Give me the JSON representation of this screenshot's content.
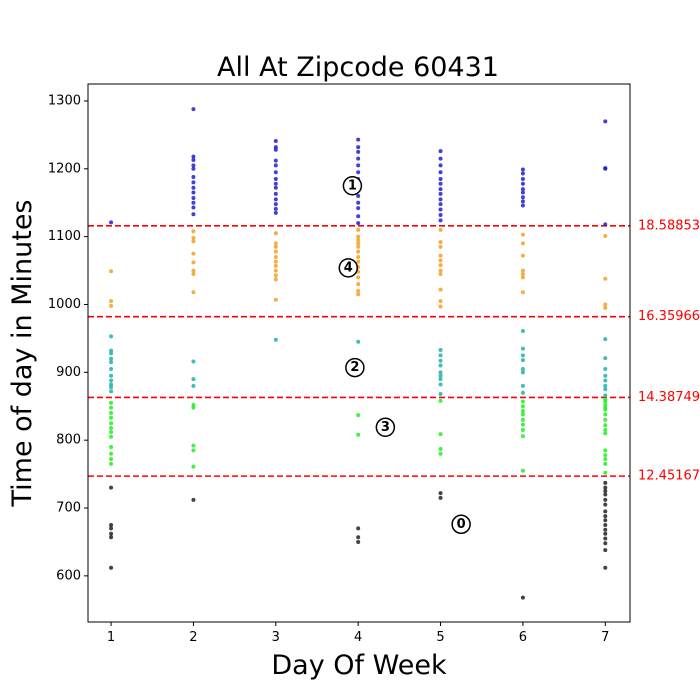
{
  "chart_data": {
    "type": "scatter",
    "title": "All At Zipcode 60431",
    "xlabel": "Day Of Week",
    "ylabel": "Time of day in Minutes",
    "xlim": [
      0.72,
      7.3
    ],
    "ylim": [
      532,
      1325
    ],
    "xticks": [
      1,
      2,
      3,
      4,
      5,
      6,
      7
    ],
    "yticks": [
      600,
      700,
      800,
      900,
      1000,
      1100,
      1200,
      1300
    ],
    "grid": false,
    "thresholds": [
      {
        "value": 1116,
        "label": "18.58853"
      },
      {
        "value": 982,
        "label": "16.35966"
      },
      {
        "value": 863,
        "label": "14.38749"
      },
      {
        "value": 747,
        "label": "12.45167"
      }
    ],
    "threshold_color": "#ff0000",
    "clusters": [
      {
        "label": "0",
        "x": 5.25,
        "y": 676,
        "color": "#222222"
      },
      {
        "label": "1",
        "x": 3.93,
        "y": 1175,
        "color": "#2020cc"
      },
      {
        "label": "2",
        "x": 3.96,
        "y": 907,
        "color": "#20b2aa"
      },
      {
        "label": "3",
        "x": 4.33,
        "y": 819,
        "color": "#22ee22"
      },
      {
        "label": "4",
        "x": 3.88,
        "y": 1054,
        "color": "#f5a020"
      }
    ],
    "series": [
      {
        "cluster": "0",
        "points": [
          [
            1,
            730
          ],
          [
            1,
            675
          ],
          [
            1,
            670
          ],
          [
            1,
            662
          ],
          [
            1,
            657
          ],
          [
            1,
            612
          ],
          [
            2,
            712
          ],
          [
            4,
            670
          ],
          [
            4,
            657
          ],
          [
            4,
            650
          ],
          [
            5,
            722
          ],
          [
            5,
            715
          ],
          [
            6,
            568
          ],
          [
            7,
            737
          ],
          [
            7,
            730
          ],
          [
            7,
            725
          ],
          [
            7,
            720
          ],
          [
            7,
            712
          ],
          [
            7,
            705
          ],
          [
            7,
            695
          ],
          [
            7,
            688
          ],
          [
            7,
            682
          ],
          [
            7,
            675
          ],
          [
            7,
            668
          ],
          [
            7,
            662
          ],
          [
            7,
            655
          ],
          [
            7,
            648
          ],
          [
            7,
            638
          ],
          [
            7,
            612
          ]
        ]
      },
      {
        "cluster": "1",
        "points": [
          [
            1,
            1121
          ],
          [
            2,
            1288
          ],
          [
            2,
            1218
          ],
          [
            2,
            1213
          ],
          [
            2,
            1205
          ],
          [
            2,
            1200
          ],
          [
            2,
            1188
          ],
          [
            2,
            1180
          ],
          [
            2,
            1172
          ],
          [
            2,
            1165
          ],
          [
            2,
            1157
          ],
          [
            2,
            1150
          ],
          [
            2,
            1143
          ],
          [
            2,
            1133
          ],
          [
            3,
            1241
          ],
          [
            3,
            1232
          ],
          [
            3,
            1228
          ],
          [
            3,
            1212
          ],
          [
            3,
            1205
          ],
          [
            3,
            1195
          ],
          [
            3,
            1185
          ],
          [
            3,
            1178
          ],
          [
            3,
            1172
          ],
          [
            3,
            1163
          ],
          [
            3,
            1155
          ],
          [
            3,
            1148
          ],
          [
            3,
            1141
          ],
          [
            3,
            1135
          ],
          [
            4,
            1243
          ],
          [
            4,
            1232
          ],
          [
            4,
            1225
          ],
          [
            4,
            1215
          ],
          [
            4,
            1205
          ],
          [
            4,
            1195
          ],
          [
            4,
            1185
          ],
          [
            4,
            1172
          ],
          [
            4,
            1160
          ],
          [
            4,
            1150
          ],
          [
            4,
            1142
          ],
          [
            4,
            1130
          ],
          [
            4,
            1120
          ],
          [
            5,
            1226
          ],
          [
            5,
            1215
          ],
          [
            5,
            1205
          ],
          [
            5,
            1195
          ],
          [
            5,
            1185
          ],
          [
            5,
            1178
          ],
          [
            5,
            1170
          ],
          [
            5,
            1163
          ],
          [
            5,
            1155
          ],
          [
            5,
            1148
          ],
          [
            5,
            1140
          ],
          [
            5,
            1132
          ],
          [
            5,
            1124
          ],
          [
            6,
            1199
          ],
          [
            6,
            1193
          ],
          [
            6,
            1185
          ],
          [
            6,
            1178
          ],
          [
            6,
            1170
          ],
          [
            6,
            1165
          ],
          [
            6,
            1158
          ],
          [
            6,
            1152
          ],
          [
            6,
            1146
          ],
          [
            7,
            1270
          ],
          [
            7,
            1201
          ],
          [
            7,
            1200
          ],
          [
            7,
            1118
          ]
        ]
      },
      {
        "cluster": "4",
        "points": [
          [
            1,
            1049
          ],
          [
            1,
            1005
          ],
          [
            1,
            998
          ],
          [
            2,
            1108
          ],
          [
            2,
            1098
          ],
          [
            2,
            1093
          ],
          [
            2,
            1075
          ],
          [
            2,
            1062
          ],
          [
            2,
            1050
          ],
          [
            2,
            1045
          ],
          [
            2,
            1018
          ],
          [
            3,
            1105
          ],
          [
            3,
            1090
          ],
          [
            3,
            1085
          ],
          [
            3,
            1078
          ],
          [
            3,
            1070
          ],
          [
            3,
            1063
          ],
          [
            3,
            1057
          ],
          [
            3,
            1050
          ],
          [
            3,
            1043
          ],
          [
            3,
            1037
          ],
          [
            3,
            1007
          ],
          [
            4,
            1110
          ],
          [
            4,
            1100
          ],
          [
            4,
            1095
          ],
          [
            4,
            1090
          ],
          [
            4,
            1085
          ],
          [
            4,
            1078
          ],
          [
            4,
            1070
          ],
          [
            4,
            1063
          ],
          [
            4,
            1055
          ],
          [
            4,
            1048
          ],
          [
            4,
            1040
          ],
          [
            4,
            1030
          ],
          [
            4,
            1020
          ],
          [
            4,
            1015
          ],
          [
            5,
            1110
          ],
          [
            5,
            1092
          ],
          [
            5,
            1085
          ],
          [
            5,
            1072
          ],
          [
            5,
            1065
          ],
          [
            5,
            1058
          ],
          [
            5,
            1050
          ],
          [
            5,
            1045
          ],
          [
            5,
            1022
          ],
          [
            5,
            1005
          ],
          [
            5,
            997
          ],
          [
            6,
            1103
          ],
          [
            6,
            1090
          ],
          [
            6,
            1072
          ],
          [
            6,
            1050
          ],
          [
            6,
            1045
          ],
          [
            6,
            1040
          ],
          [
            6,
            1018
          ],
          [
            7,
            1101
          ],
          [
            7,
            1038
          ],
          [
            7,
            1000
          ],
          [
            7,
            995
          ]
        ]
      },
      {
        "cluster": "2",
        "points": [
          [
            1,
            953
          ],
          [
            1,
            932
          ],
          [
            1,
            928
          ],
          [
            1,
            920
          ],
          [
            1,
            915
          ],
          [
            1,
            905
          ],
          [
            1,
            895
          ],
          [
            1,
            888
          ],
          [
            1,
            882
          ],
          [
            1,
            878
          ],
          [
            1,
            872
          ],
          [
            2,
            916
          ],
          [
            2,
            890
          ],
          [
            2,
            880
          ],
          [
            3,
            948
          ],
          [
            4,
            945
          ],
          [
            5,
            933
          ],
          [
            5,
            925
          ],
          [
            5,
            917
          ],
          [
            5,
            910
          ],
          [
            5,
            900
          ],
          [
            5,
            895
          ],
          [
            5,
            890
          ],
          [
            5,
            882
          ],
          [
            5,
            868
          ],
          [
            6,
            961
          ],
          [
            6,
            935
          ],
          [
            6,
            925
          ],
          [
            6,
            918
          ],
          [
            6,
            905
          ],
          [
            6,
            900
          ],
          [
            6,
            880
          ],
          [
            6,
            870
          ],
          [
            7,
            949
          ],
          [
            7,
            921
          ],
          [
            7,
            905
          ],
          [
            7,
            895
          ],
          [
            7,
            888
          ],
          [
            7,
            880
          ],
          [
            7,
            875
          ],
          [
            7,
            866
          ]
        ]
      },
      {
        "cluster": "3",
        "points": [
          [
            1,
            855
          ],
          [
            1,
            848
          ],
          [
            1,
            840
          ],
          [
            1,
            833
          ],
          [
            1,
            825
          ],
          [
            1,
            818
          ],
          [
            1,
            812
          ],
          [
            1,
            805
          ],
          [
            1,
            790
          ],
          [
            1,
            780
          ],
          [
            1,
            772
          ],
          [
            1,
            765
          ],
          [
            2,
            852
          ],
          [
            2,
            848
          ],
          [
            2,
            792
          ],
          [
            2,
            785
          ],
          [
            2,
            761
          ],
          [
            4,
            837
          ],
          [
            4,
            808
          ],
          [
            5,
            858
          ],
          [
            5,
            809
          ],
          [
            5,
            787
          ],
          [
            5,
            780
          ],
          [
            6,
            857
          ],
          [
            6,
            850
          ],
          [
            6,
            843
          ],
          [
            6,
            838
          ],
          [
            6,
            830
          ],
          [
            6,
            823
          ],
          [
            6,
            815
          ],
          [
            6,
            806
          ],
          [
            6,
            755
          ],
          [
            7,
            860
          ],
          [
            7,
            857
          ],
          [
            7,
            852
          ],
          [
            7,
            848
          ],
          [
            7,
            845
          ],
          [
            7,
            838
          ],
          [
            7,
            830
          ],
          [
            7,
            822
          ],
          [
            7,
            815
          ],
          [
            7,
            810
          ],
          [
            7,
            785
          ],
          [
            7,
            778
          ],
          [
            7,
            772
          ],
          [
            7,
            765
          ],
          [
            7,
            752
          ]
        ]
      }
    ]
  }
}
